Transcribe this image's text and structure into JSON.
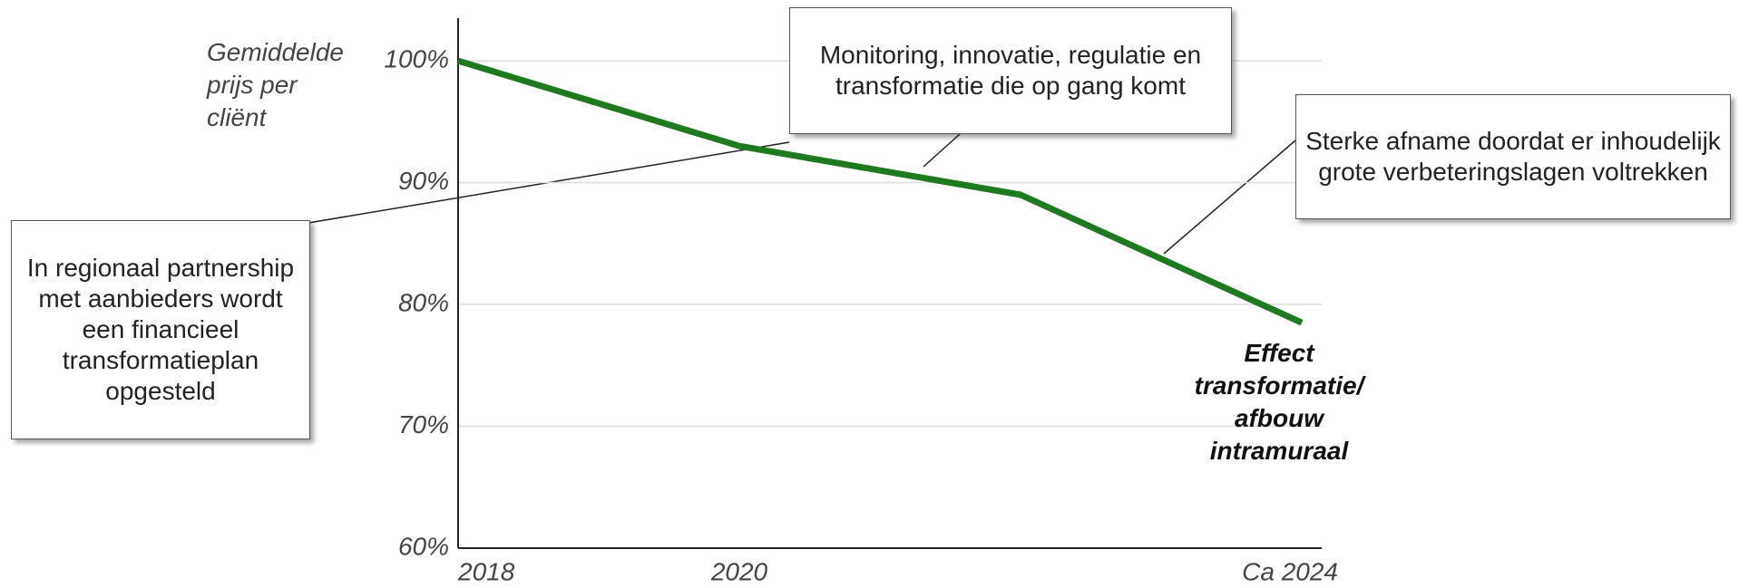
{
  "chart_data": {
    "type": "line",
    "ylabel": "Gemiddelde prijs per cliënt",
    "categories": [
      "2018",
      "2020",
      null,
      "Ca 2024"
    ],
    "series": [
      {
        "name": "Gemiddelde prijs per cliënt",
        "color": "#1e7a1e",
        "values": [
          100,
          93,
          89,
          78.5
        ]
      }
    ],
    "ylim": [
      60,
      103.5
    ],
    "yticks": [
      {
        "value": 60,
        "label": "60%"
      },
      {
        "value": 70,
        "label": "70%"
      },
      {
        "value": 80,
        "label": "80%"
      },
      {
        "value": 90,
        "label": "90%"
      },
      {
        "value": 100,
        "label": "100%"
      }
    ],
    "grid": true,
    "annotations": [
      "In regionaal partnership met aanbieders wordt een financieel transformatieplan opgesteld",
      "Monitoring, innovatie, regulatie en transformatie die op gang komt",
      "Sterke afname doordat er inhoudelijk grote verbeteringslagen voltrekken",
      "Effect transformatie/ afbouw intramuraal"
    ]
  }
}
